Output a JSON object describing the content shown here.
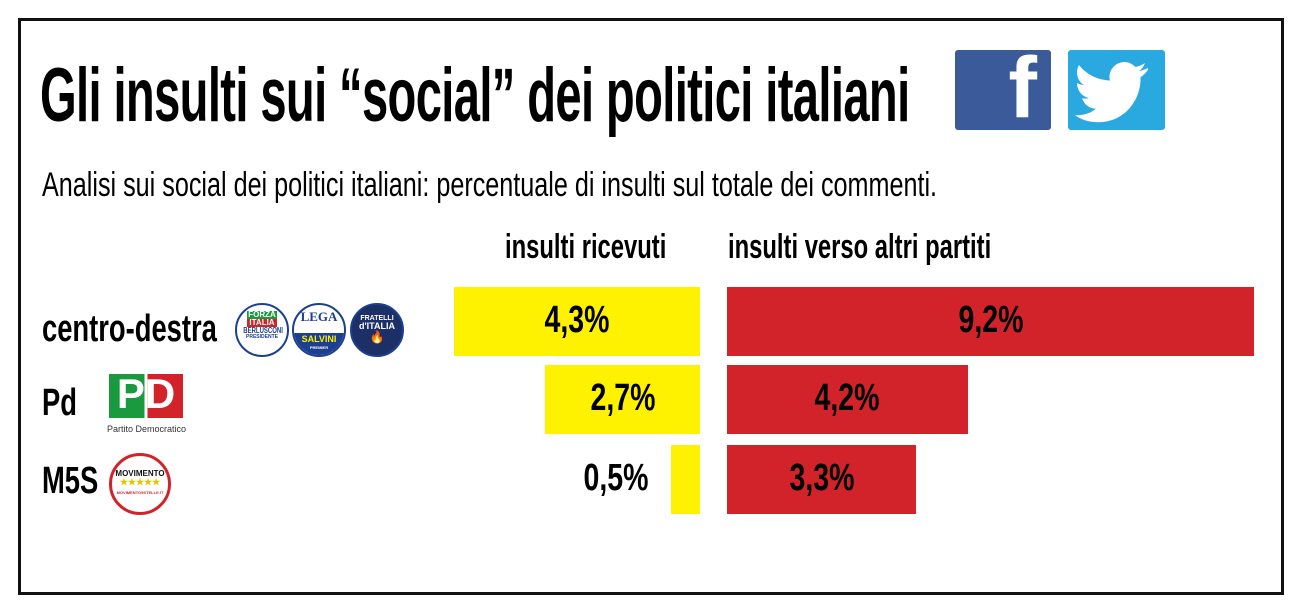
{
  "title": "Gli insulti sui “social” dei politici italiani",
  "subtitle": "Analisi sui social dei politici italiani: percentuale di insulti sul totale dei commenti.",
  "icons": [
    "facebook-icon",
    "twitter-icon"
  ],
  "logos": {
    "forza_italia": [
      "FORZA",
      "ITALIA",
      "BERLUSCONI",
      "PRESIDENTE"
    ],
    "lega": [
      "LEGA",
      "SALVINI",
      "PREMIER"
    ],
    "fratelli": [
      "FRATELLI",
      "d'ITALIA"
    ],
    "pd": [
      "PD",
      "Partito Democratico"
    ],
    "m5s": [
      "MOVIMENTO",
      "★★★★★",
      "MOVIMENTO5STELLE.IT"
    ]
  },
  "colors": {
    "received": "#fff200",
    "towards": "#d2232a"
  },
  "chart_data": {
    "type": "bar",
    "title": "Gli insulti sui “social” dei politici italiani",
    "categories": [
      "centro-destra",
      "Pd",
      "M5S"
    ],
    "series": [
      {
        "name": "insulti ricevuti",
        "values": [
          4.3,
          2.7,
          0.5
        ],
        "labels": [
          "4,3%",
          "2,7%",
          "0,5%"
        ]
      },
      {
        "name": "insulti verso altri partiti",
        "values": [
          9.2,
          4.2,
          3.3
        ],
        "labels": [
          "9,2%",
          "4,2%",
          "3,3%"
        ]
      }
    ],
    "unit": "%"
  }
}
